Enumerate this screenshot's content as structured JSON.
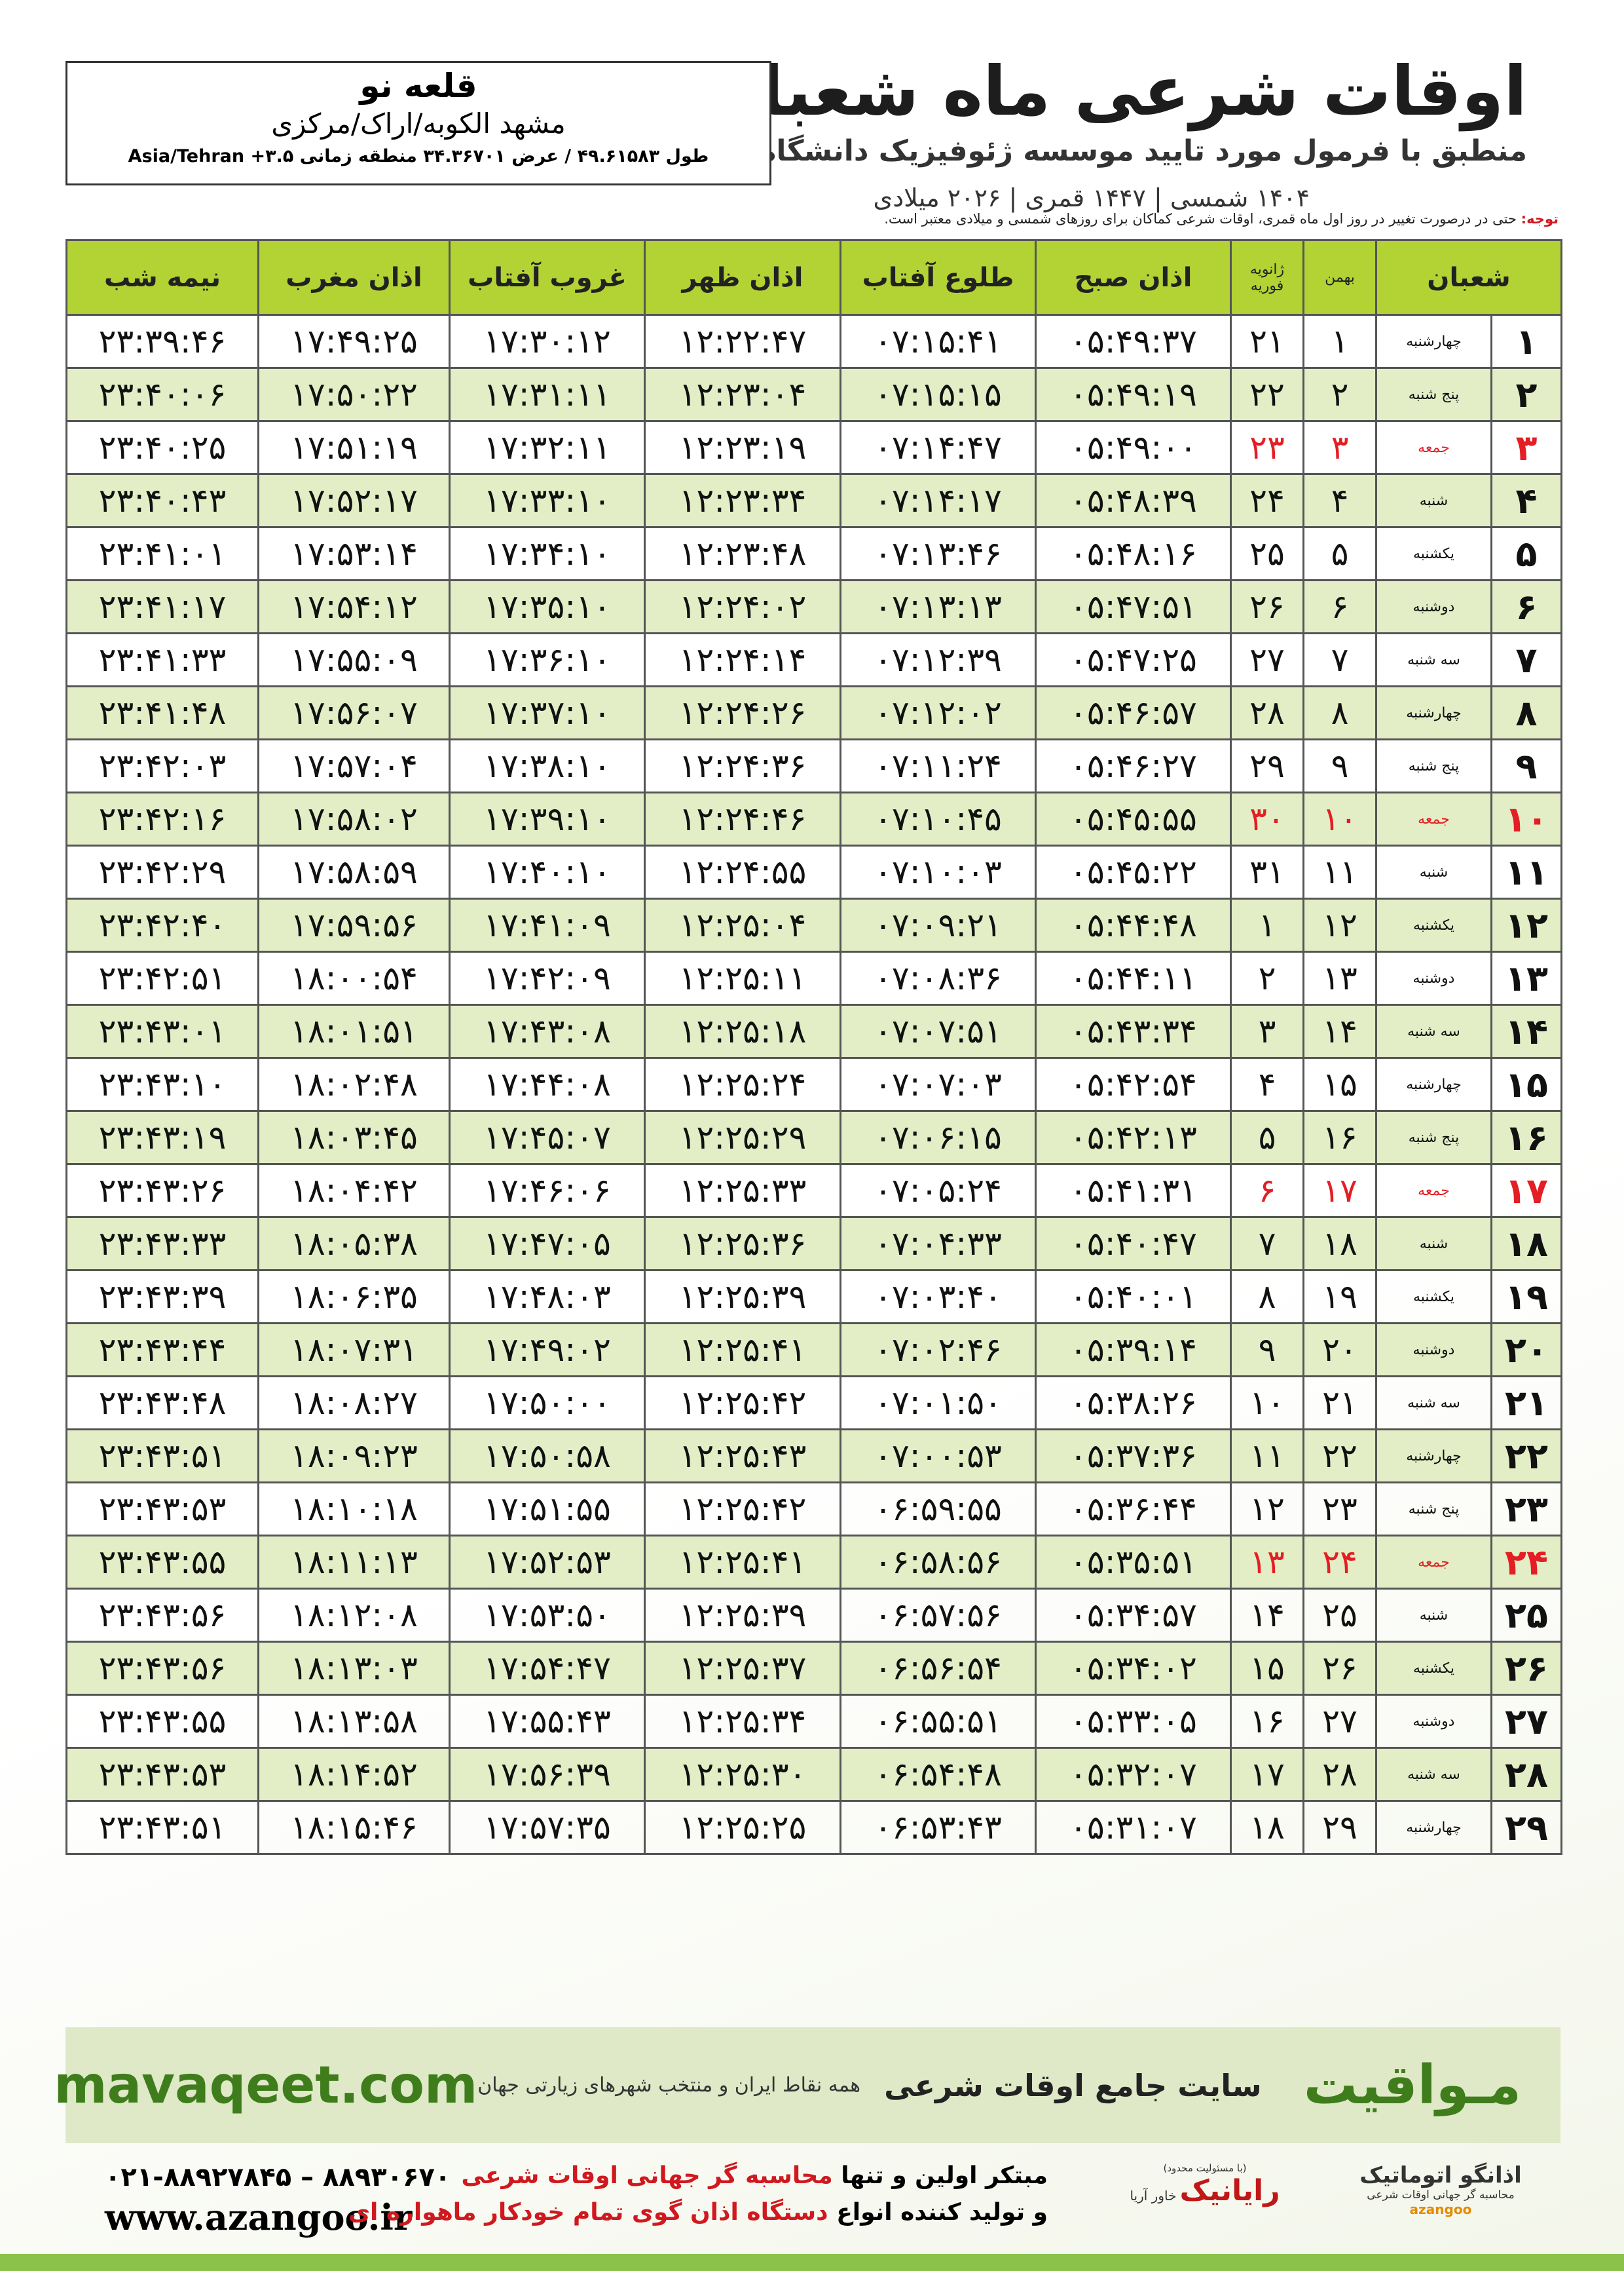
{
  "header": {
    "title": "اوقات شرعی ماه شعبان",
    "subtitle": "منطبق با فرمول مورد تایید موسسه ژئوفیزیک دانشگاه تهران",
    "dates": "۱۴۰۴ شمسی | ۱۴۴۷ قمری | ۲۰۲۶ میلادی"
  },
  "location": {
    "city": "قلعه نو",
    "region": "مشهد الکوبه/اراک/مرکزی",
    "coordinates": "طول ۴۹.۶۱۵۸۳ / عرض ۳۴.۳۶۷۰۱ منطقه زمانی ۳.۵+ Asia/Tehran"
  },
  "note": {
    "label": "توجه:",
    "text": "حتی در درصورت تغییر در روز اول ماه قمری، اوقات شرعی کماکان برای روزهای شمسی و میلادی معتبر است."
  },
  "table": {
    "columns": [
      "شعبان",
      "بهمن",
      "ژانویه",
      "فوریه",
      "اذان صبح",
      "طلوع آفتاب",
      "اذان ظهر",
      "غروب آفتاب",
      "اذان مغرب",
      "نیمه شب"
    ],
    "rows": [
      {
        "cells": [
          "۱",
          "چهارشنبه",
          "۱",
          "۲۱",
          "۰۵:۴۹:۳۷",
          "۰۷:۱۵:۴۱",
          "۱۲:۲۲:۴۷",
          "۱۷:۳۰:۱۲",
          "۱۷:۴۹:۲۵",
          "۲۳:۳۹:۴۶"
        ],
        "holiday": false
      },
      {
        "cells": [
          "۲",
          "پنج شنبه",
          "۲",
          "۲۲",
          "۰۵:۴۹:۱۹",
          "۰۷:۱۵:۱۵",
          "۱۲:۲۳:۰۴",
          "۱۷:۳۱:۱۱",
          "۱۷:۵۰:۲۲",
          "۲۳:۴۰:۰۶"
        ],
        "holiday": false
      },
      {
        "cells": [
          "۳",
          "جمعه",
          "۳",
          "۲۳",
          "۰۵:۴۹:۰۰",
          "۰۷:۱۴:۴۷",
          "۱۲:۲۳:۱۹",
          "۱۷:۳۲:۱۱",
          "۱۷:۵۱:۱۹",
          "۲۳:۴۰:۲۵"
        ],
        "holiday": true
      },
      {
        "cells": [
          "۴",
          "شنبه",
          "۴",
          "۲۴",
          "۰۵:۴۸:۳۹",
          "۰۷:۱۴:۱۷",
          "۱۲:۲۳:۳۴",
          "۱۷:۳۳:۱۰",
          "۱۷:۵۲:۱۷",
          "۲۳:۴۰:۴۳"
        ],
        "holiday": false
      },
      {
        "cells": [
          "۵",
          "یکشنبه",
          "۵",
          "۲۵",
          "۰۵:۴۸:۱۶",
          "۰۷:۱۳:۴۶",
          "۱۲:۲۳:۴۸",
          "۱۷:۳۴:۱۰",
          "۱۷:۵۳:۱۴",
          "۲۳:۴۱:۰۱"
        ],
        "holiday": false
      },
      {
        "cells": [
          "۶",
          "دوشنبه",
          "۶",
          "۲۶",
          "۰۵:۴۷:۵۱",
          "۰۷:۱۳:۱۳",
          "۱۲:۲۴:۰۲",
          "۱۷:۳۵:۱۰",
          "۱۷:۵۴:۱۲",
          "۲۳:۴۱:۱۷"
        ],
        "holiday": false
      },
      {
        "cells": [
          "۷",
          "سه شنبه",
          "۷",
          "۲۷",
          "۰۵:۴۷:۲۵",
          "۰۷:۱۲:۳۹",
          "۱۲:۲۴:۱۴",
          "۱۷:۳۶:۱۰",
          "۱۷:۵۵:۰۹",
          "۲۳:۴۱:۳۳"
        ],
        "holiday": false
      },
      {
        "cells": [
          "۸",
          "چهارشنبه",
          "۸",
          "۲۸",
          "۰۵:۴۶:۵۷",
          "۰۷:۱۲:۰۲",
          "۱۲:۲۴:۲۶",
          "۱۷:۳۷:۱۰",
          "۱۷:۵۶:۰۷",
          "۲۳:۴۱:۴۸"
        ],
        "holiday": false
      },
      {
        "cells": [
          "۹",
          "پنج شنبه",
          "۹",
          "۲۹",
          "۰۵:۴۶:۲۷",
          "۰۷:۱۱:۲۴",
          "۱۲:۲۴:۳۶",
          "۱۷:۳۸:۱۰",
          "۱۷:۵۷:۰۴",
          "۲۳:۴۲:۰۳"
        ],
        "holiday": false
      },
      {
        "cells": [
          "۱۰",
          "جمعه",
          "۱۰",
          "۳۰",
          "۰۵:۴۵:۵۵",
          "۰۷:۱۰:۴۵",
          "۱۲:۲۴:۴۶",
          "۱۷:۳۹:۱۰",
          "۱۷:۵۸:۰۲",
          "۲۳:۴۲:۱۶"
        ],
        "holiday": true
      },
      {
        "cells": [
          "۱۱",
          "شنبه",
          "۱۱",
          "۳۱",
          "۰۵:۴۵:۲۲",
          "۰۷:۱۰:۰۳",
          "۱۲:۲۴:۵۵",
          "۱۷:۴۰:۱۰",
          "۱۷:۵۸:۵۹",
          "۲۳:۴۲:۲۹"
        ],
        "holiday": false
      },
      {
        "cells": [
          "۱۲",
          "یکشنبه",
          "۱۲",
          "۱",
          "۰۵:۴۴:۴۸",
          "۰۷:۰۹:۲۱",
          "۱۲:۲۵:۰۴",
          "۱۷:۴۱:۰۹",
          "۱۷:۵۹:۵۶",
          "۲۳:۴۲:۴۰"
        ],
        "holiday": false
      },
      {
        "cells": [
          "۱۳",
          "دوشنبه",
          "۱۳",
          "۲",
          "۰۵:۴۴:۱۱",
          "۰۷:۰۸:۳۶",
          "۱۲:۲۵:۱۱",
          "۱۷:۴۲:۰۹",
          "۱۸:۰۰:۵۴",
          "۲۳:۴۲:۵۱"
        ],
        "holiday": false
      },
      {
        "cells": [
          "۱۴",
          "سه شنبه",
          "۱۴",
          "۳",
          "۰۵:۴۳:۳۴",
          "۰۷:۰۷:۵۱",
          "۱۲:۲۵:۱۸",
          "۱۷:۴۳:۰۸",
          "۱۸:۰۱:۵۱",
          "۲۳:۴۳:۰۱"
        ],
        "holiday": false
      },
      {
        "cells": [
          "۱۵",
          "چهارشنبه",
          "۱۵",
          "۴",
          "۰۵:۴۲:۵۴",
          "۰۷:۰۷:۰۳",
          "۱۲:۲۵:۲۴",
          "۱۷:۴۴:۰۸",
          "۱۸:۰۲:۴۸",
          "۲۳:۴۳:۱۰"
        ],
        "holiday": false
      },
      {
        "cells": [
          "۱۶",
          "پنج شنبه",
          "۱۶",
          "۵",
          "۰۵:۴۲:۱۳",
          "۰۷:۰۶:۱۵",
          "۱۲:۲۵:۲۹",
          "۱۷:۴۵:۰۷",
          "۱۸:۰۳:۴۵",
          "۲۳:۴۳:۱۹"
        ],
        "holiday": false
      },
      {
        "cells": [
          "۱۷",
          "جمعه",
          "۱۷",
          "۶",
          "۰۵:۴۱:۳۱",
          "۰۷:۰۵:۲۴",
          "۱۲:۲۵:۳۳",
          "۱۷:۴۶:۰۶",
          "۱۸:۰۴:۴۲",
          "۲۳:۴۳:۲۶"
        ],
        "holiday": true
      },
      {
        "cells": [
          "۱۸",
          "شنبه",
          "۱۸",
          "۷",
          "۰۵:۴۰:۴۷",
          "۰۷:۰۴:۳۳",
          "۱۲:۲۵:۳۶",
          "۱۷:۴۷:۰۵",
          "۱۸:۰۵:۳۸",
          "۲۳:۴۳:۳۳"
        ],
        "holiday": false
      },
      {
        "cells": [
          "۱۹",
          "یکشنبه",
          "۱۹",
          "۸",
          "۰۵:۴۰:۰۱",
          "۰۷:۰۳:۴۰",
          "۱۲:۲۵:۳۹",
          "۱۷:۴۸:۰۳",
          "۱۸:۰۶:۳۵",
          "۲۳:۴۳:۳۹"
        ],
        "holiday": false
      },
      {
        "cells": [
          "۲۰",
          "دوشنبه",
          "۲۰",
          "۹",
          "۰۵:۳۹:۱۴",
          "۰۷:۰۲:۴۶",
          "۱۲:۲۵:۴۱",
          "۱۷:۴۹:۰۲",
          "۱۸:۰۷:۳۱",
          "۲۳:۴۳:۴۴"
        ],
        "holiday": false
      },
      {
        "cells": [
          "۲۱",
          "سه شنبه",
          "۲۱",
          "۱۰",
          "۰۵:۳۸:۲۶",
          "۰۷:۰۱:۵۰",
          "۱۲:۲۵:۴۲",
          "۱۷:۵۰:۰۰",
          "۱۸:۰۸:۲۷",
          "۲۳:۴۳:۴۸"
        ],
        "holiday": false
      },
      {
        "cells": [
          "۲۲",
          "چهارشنبه",
          "۲۲",
          "۱۱",
          "۰۵:۳۷:۳۶",
          "۰۷:۰۰:۵۳",
          "۱۲:۲۵:۴۳",
          "۱۷:۵۰:۵۸",
          "۱۸:۰۹:۲۳",
          "۲۳:۴۳:۵۱"
        ],
        "holiday": false
      },
      {
        "cells": [
          "۲۳",
          "پنج شنبه",
          "۲۳",
          "۱۲",
          "۰۵:۳۶:۴۴",
          "۰۶:۵۹:۵۵",
          "۱۲:۲۵:۴۲",
          "۱۷:۵۱:۵۵",
          "۱۸:۱۰:۱۸",
          "۲۳:۴۳:۵۳"
        ],
        "holiday": false
      },
      {
        "cells": [
          "۲۴",
          "جمعه",
          "۲۴",
          "۱۳",
          "۰۵:۳۵:۵۱",
          "۰۶:۵۸:۵۶",
          "۱۲:۲۵:۴۱",
          "۱۷:۵۲:۵۳",
          "۱۸:۱۱:۱۳",
          "۲۳:۴۳:۵۵"
        ],
        "holiday": true
      },
      {
        "cells": [
          "۲۵",
          "شنبه",
          "۲۵",
          "۱۴",
          "۰۵:۳۴:۵۷",
          "۰۶:۵۷:۵۶",
          "۱۲:۲۵:۳۹",
          "۱۷:۵۳:۵۰",
          "۱۸:۱۲:۰۸",
          "۲۳:۴۳:۵۶"
        ],
        "holiday": false
      },
      {
        "cells": [
          "۲۶",
          "یکشنبه",
          "۲۶",
          "۱۵",
          "۰۵:۳۴:۰۲",
          "۰۶:۵۶:۵۴",
          "۱۲:۲۵:۳۷",
          "۱۷:۵۴:۴۷",
          "۱۸:۱۳:۰۳",
          "۲۳:۴۳:۵۶"
        ],
        "holiday": false
      },
      {
        "cells": [
          "۲۷",
          "دوشنبه",
          "۲۷",
          "۱۶",
          "۰۵:۳۳:۰۵",
          "۰۶:۵۵:۵۱",
          "۱۲:۲۵:۳۴",
          "۱۷:۵۵:۴۳",
          "۱۸:۱۳:۵۸",
          "۲۳:۴۳:۵۵"
        ],
        "holiday": false
      },
      {
        "cells": [
          "۲۸",
          "سه شنبه",
          "۲۸",
          "۱۷",
          "۰۵:۳۲:۰۷",
          "۰۶:۵۴:۴۸",
          "۱۲:۲۵:۳۰",
          "۱۷:۵۶:۳۹",
          "۱۸:۱۴:۵۲",
          "۲۳:۴۳:۵۳"
        ],
        "holiday": false
      },
      {
        "cells": [
          "۲۹",
          "چهارشنبه",
          "۲۹",
          "۱۸",
          "۰۵:۳۱:۰۷",
          "۰۶:۵۳:۴۳",
          "۱۲:۲۵:۲۵",
          "۱۷:۵۷:۳۵",
          "۱۸:۱۵:۴۶",
          "۲۳:۴۳:۵۱"
        ],
        "holiday": false
      }
    ]
  },
  "footer": {
    "brand": "مـواقیت",
    "tagline": "سایت جامع اوقات شرعی",
    "coverage": "همه نقاط ایران و منتخب شهرهای زیارتی جهان",
    "website": "mavaqeet.com"
  },
  "contact": {
    "phones": "۰۲۱-۸۸۹۲۷۸۴۵ – ۸۸۹۳۰۶۷۰",
    "url": "www.azangoo.ir",
    "lines": [
      {
        "plain": "مبتکر اولین و تنها",
        "highlight": "محاسبه گر جهانی اوقات شرعی"
      },
      {
        "plain": "و تولید کننده انواع",
        "highlight": "دستگاه اذان گوی تمام خودکار ماهواره ای"
      }
    ],
    "logos": {
      "raianik": "رایانیک",
      "khavar": "خاور آریا",
      "responsibility": "(با مسئولیت محدود)",
      "azangoo_fa": "اذانگو اتوماتیک",
      "azangoo_tag": "محاسبه گر جهانی اوقات شرعی",
      "azangoo_en": "azangoo"
    }
  }
}
